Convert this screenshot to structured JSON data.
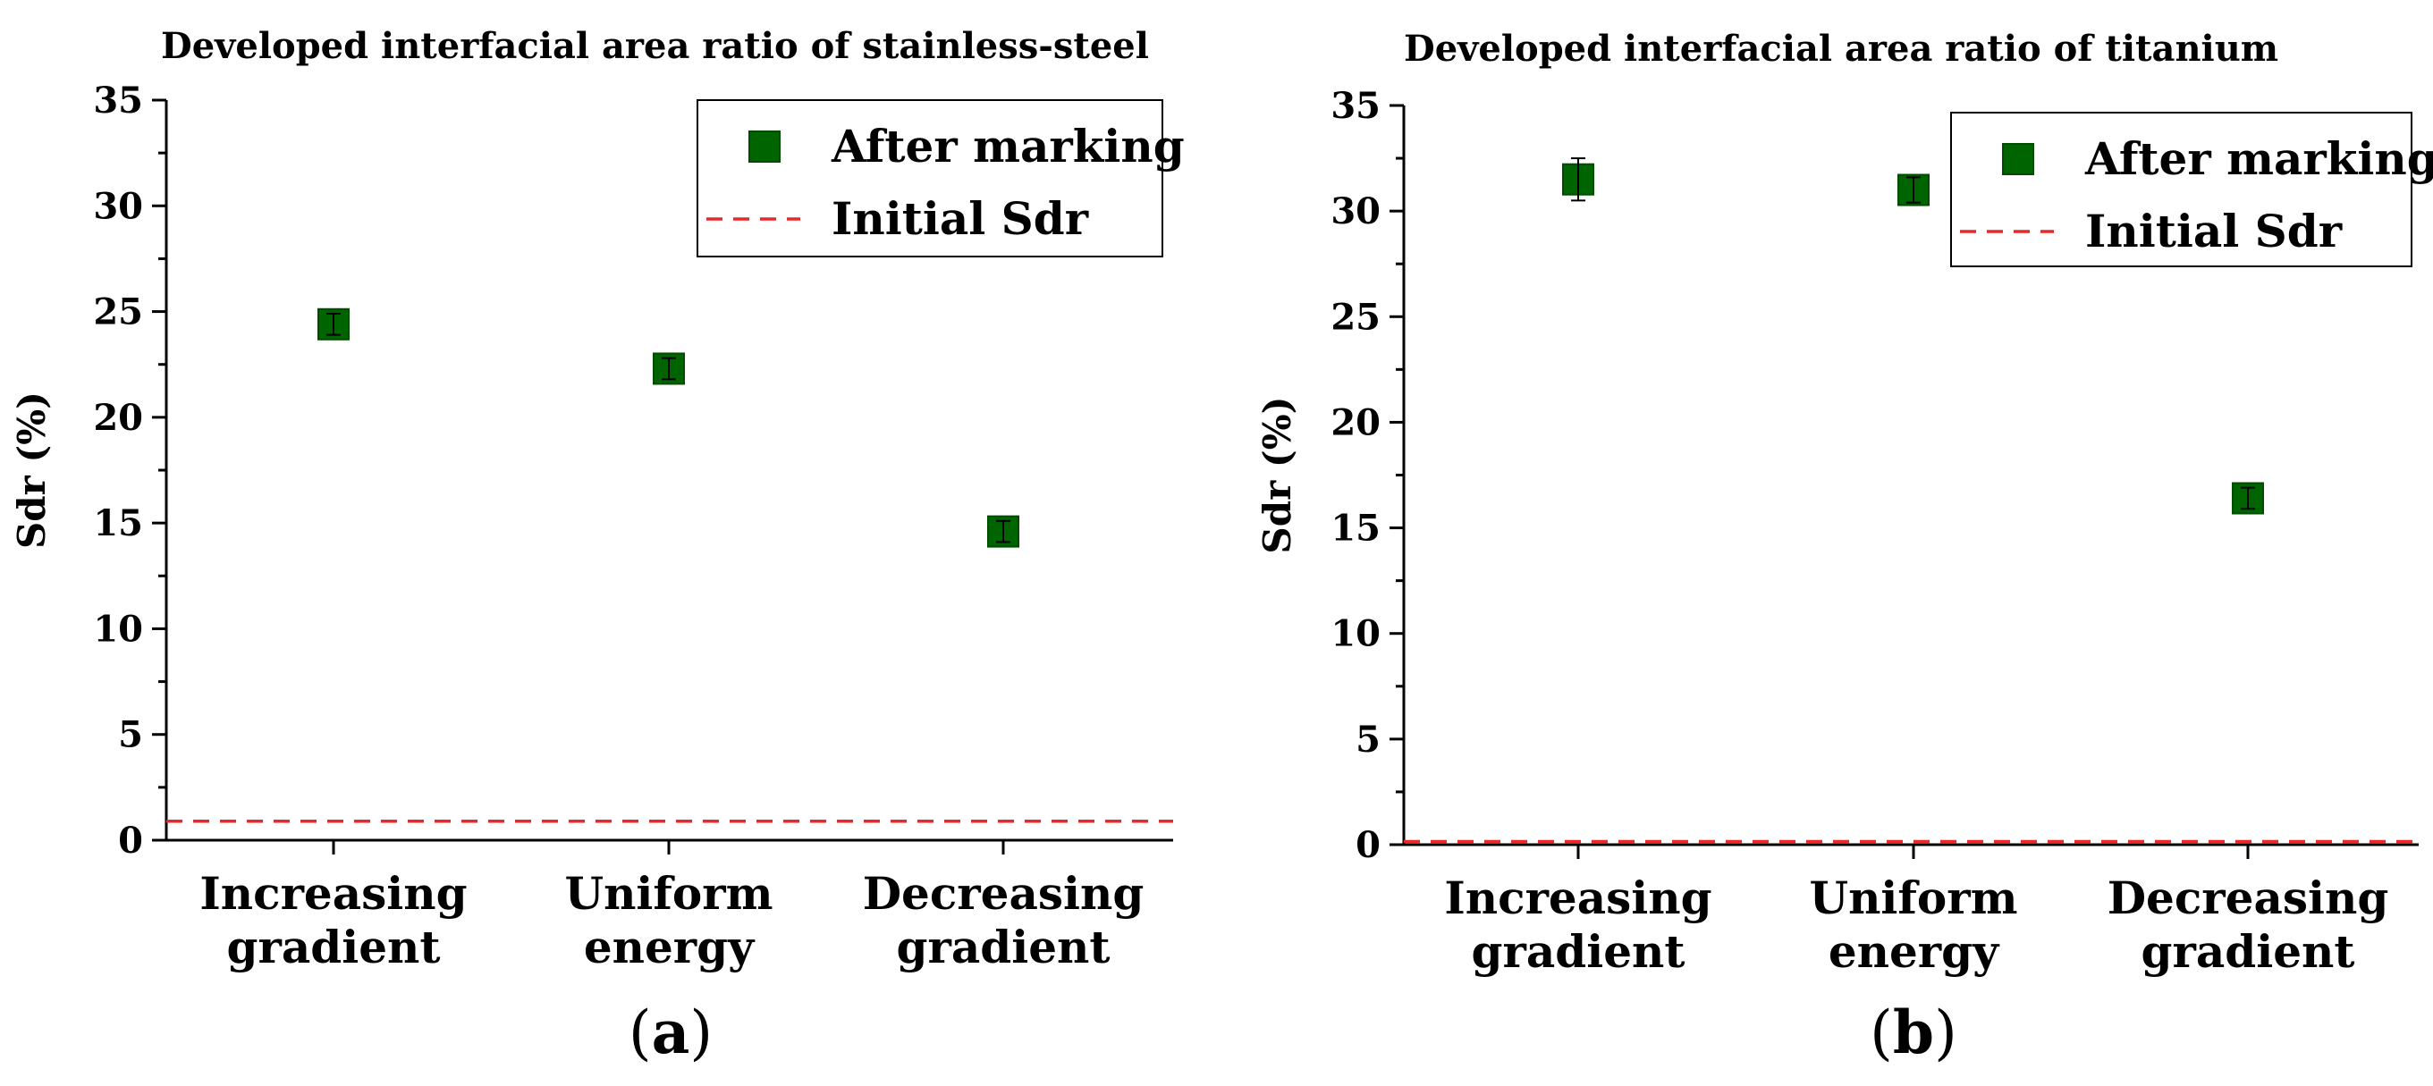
{
  "chart_data": [
    {
      "type": "scatter",
      "title": "Developed interfacial area ratio of stainless-steel",
      "xlabel": "",
      "ylabel": "Sdr (%)",
      "ylim": [
        0,
        35
      ],
      "yticks": [
        0,
        5,
        10,
        15,
        20,
        25,
        30,
        35
      ],
      "categories": [
        "Increasing\ngradient",
        "Uniform\nenergy",
        "Decreasing\ngradient"
      ],
      "series": [
        {
          "name": "After marking",
          "marker": "square",
          "color": "#006400",
          "values": [
            24.4,
            22.3,
            14.6
          ],
          "errors": [
            0.5,
            0.5,
            0.5
          ]
        }
      ],
      "reference_line": {
        "name": "Initial Sdr",
        "value": 0.9,
        "color": "#e8282b",
        "style": "dashed"
      },
      "legend_position": "top-right",
      "panel_label": {
        "open": "(",
        "letter": "a",
        "close": ")"
      }
    },
    {
      "type": "scatter",
      "title": "Developed interfacial area ratio of titanium",
      "xlabel": "",
      "ylabel": "Sdr (%)",
      "ylim": [
        0,
        35
      ],
      "yticks": [
        0,
        5,
        10,
        15,
        20,
        25,
        30,
        35
      ],
      "categories": [
        "Increasing\ngradient",
        "Uniform\nenergy",
        "Decreasing\ngradient"
      ],
      "series": [
        {
          "name": "After marking",
          "marker": "square",
          "color": "#006400",
          "values": [
            31.5,
            31.0,
            16.4
          ],
          "errors": [
            1.0,
            0.6,
            0.5
          ]
        }
      ],
      "reference_line": {
        "name": "Initial Sdr",
        "value": 0.15,
        "color": "#e8282b",
        "style": "dashed"
      },
      "legend_position": "top-right",
      "panel_label": {
        "open": "(",
        "letter": "b",
        "close": ")"
      }
    }
  ]
}
